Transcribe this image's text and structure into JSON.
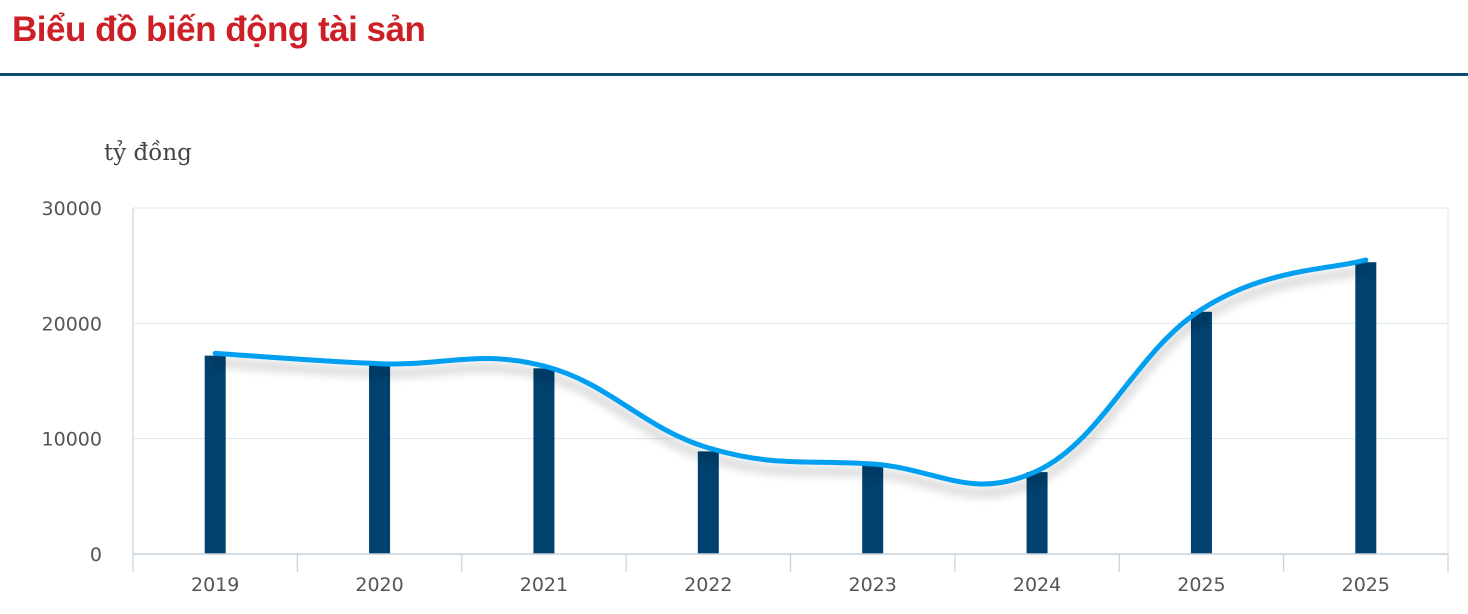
{
  "title": "Biểu đồ biến động tài sản",
  "colors": {
    "title": "#cc1f26",
    "rule": "#0e4a72",
    "bar": "#00416f",
    "line": "#009ff0"
  },
  "chart_data": {
    "type": "bar",
    "overlay": "line",
    "title": "",
    "xlabel": "",
    "ylabel": "tỷ đồng",
    "categories": [
      "2019",
      "2020",
      "2021",
      "2022",
      "2023",
      "2024",
      "2025",
      "2025"
    ],
    "values": [
      17200,
      16400,
      16100,
      8900,
      7700,
      7100,
      21000,
      25300
    ],
    "line_values": [
      17400,
      16500,
      16300,
      9200,
      7800,
      7200,
      21200,
      25500
    ],
    "yticks": [
      "0",
      "10000",
      "20000",
      "30000"
    ],
    "ylim": [
      0,
      30000
    ],
    "grid": true,
    "legend": "none"
  }
}
